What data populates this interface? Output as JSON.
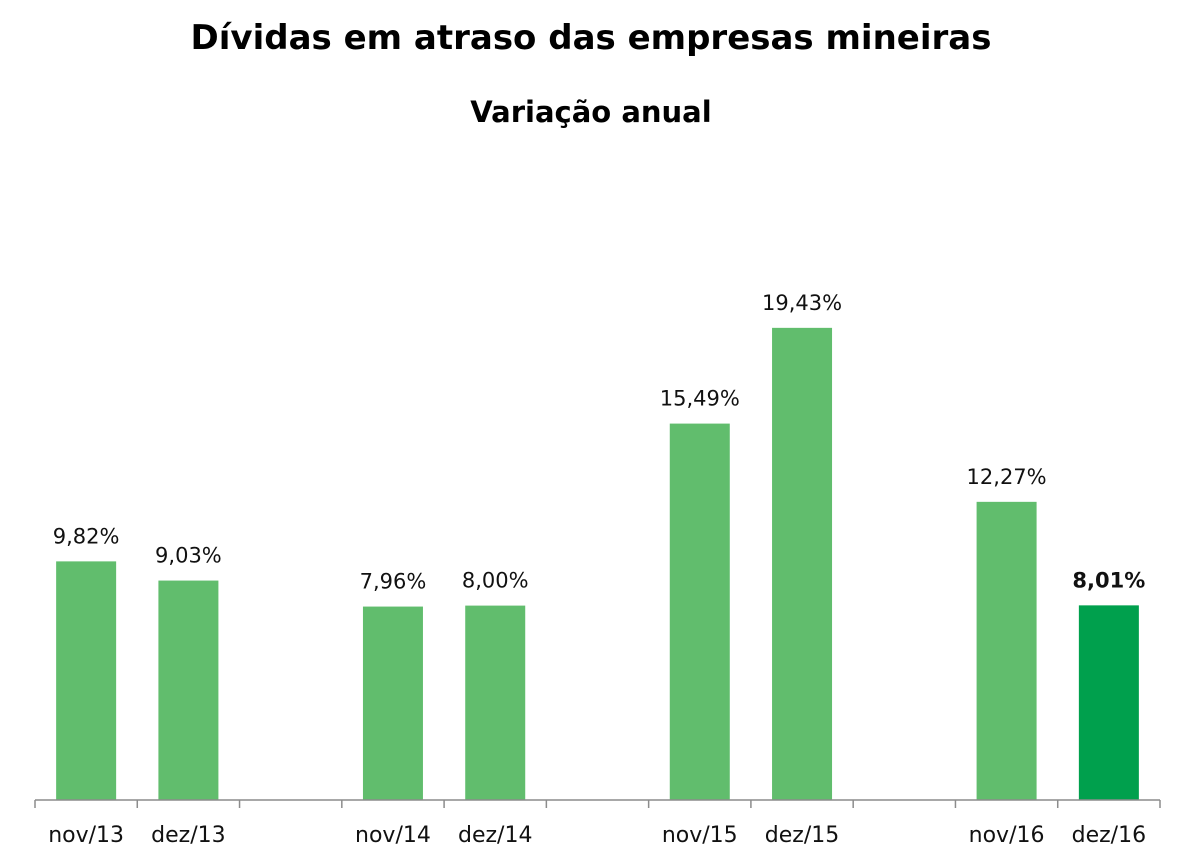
{
  "chart_data": {
    "type": "bar",
    "title": "Dívidas em atraso das empresas mineiras",
    "subtitle": "Variação anual",
    "xlabel": "",
    "ylabel": "",
    "categories": [
      "nov/13",
      "dez/13",
      "",
      "nov/14",
      "dez/14",
      "",
      "nov/15",
      "dez/15",
      "",
      "nov/16",
      "dez/16"
    ],
    "values": [
      9.82,
      9.03,
      null,
      7.96,
      8.0,
      null,
      15.49,
      19.43,
      null,
      12.27,
      8.01
    ],
    "value_labels": [
      "9,82%",
      "9,03%",
      "",
      "7,96%",
      "8,00%",
      "",
      "15,49%",
      "19,43%",
      "",
      "12,27%",
      "8,01%"
    ],
    "highlight_index": 10,
    "ylim": [
      0,
      20
    ],
    "grid": false,
    "legend": "none",
    "colors": {
      "bar": "#61bd6d",
      "highlight": "#00a04d",
      "axis": "#8c8c8c"
    }
  }
}
